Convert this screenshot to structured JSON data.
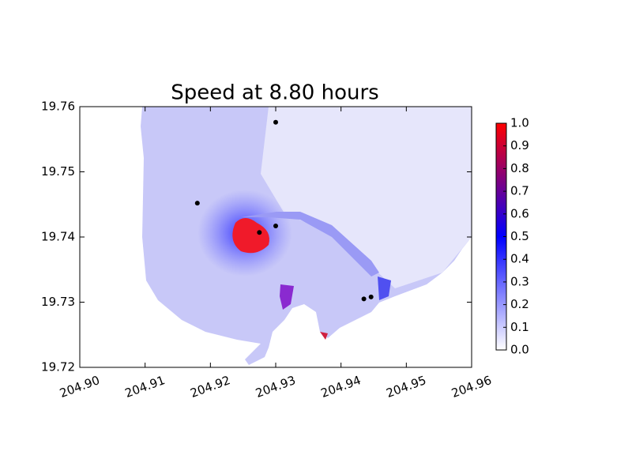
{
  "chart_data": {
    "type": "scatter",
    "title": "Speed at 8.80 hours",
    "x": [
      204.93,
      204.918,
      204.93,
      204.9275,
      204.9435,
      204.9446
    ],
    "values": [
      19.7576,
      19.7452,
      19.7417,
      19.7407,
      19.7305,
      19.7308
    ],
    "color": "#000000",
    "xlim": [
      204.9,
      204.96
    ],
    "xticks": [
      {
        "value": 204.9,
        "label": "204.90"
      },
      204.91,
      204.92,
      204.93,
      204.94,
      204.95,
      204.96
    ],
    "ylim": [
      19.72,
      19.76
    ],
    "yticks": [
      19.72,
      19.73,
      19.74,
      19.75,
      19.76
    ],
    "colorbar": {
      "clim": [
        0,
        1
      ],
      "colors": [
        "#ffffff",
        "#0000ff",
        "#ff0000"
      ],
      "ticks": [
        {
          "value": 0,
          "label": "0.0"
        },
        0.1,
        0.2,
        0.3,
        0.4,
        0.5,
        0.6,
        0.7,
        0.8,
        0.9,
        {
          "value": 1,
          "label": "1.0"
        }
      ]
    }
  }
}
